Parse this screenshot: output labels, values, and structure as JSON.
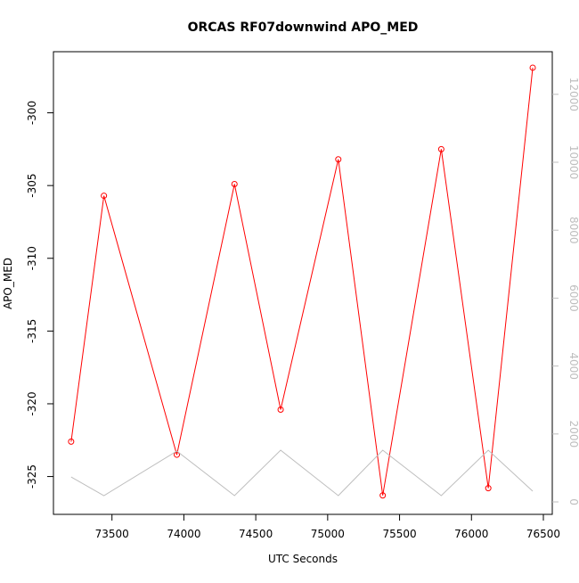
{
  "chart_data": {
    "type": "line",
    "title": "ORCAS RF07downwind APO_MED",
    "x_label": "UTC Seconds",
    "y_label": "APO_MED",
    "x": [
      73216,
      73444,
      73951,
      74352,
      74673,
      75074,
      75383,
      75790,
      76117,
      76426
    ],
    "series": [
      {
        "color": "#ff0000",
        "markers": true,
        "values": [
          -322.6,
          -305.7,
          -323.5,
          -304.9,
          -320.4,
          -303.2,
          -326.3,
          -302.5,
          -325.8,
          -296.9
        ]
      },
      {
        "color": "#bebebe",
        "axis": "y2",
        "markers": false,
        "values": [
          735,
          184,
          1496,
          184,
          1522,
          184,
          1522,
          184,
          1522,
          315
        ]
      }
    ],
    "xlim": [
      73093,
      76562
    ],
    "xticks": [
      73500,
      74000,
      74500,
      75000,
      75500,
      76000,
      76500
    ],
    "ylim": [
      -327.6,
      -295.8
    ],
    "yticks": [
      -325,
      -320,
      -315,
      -310,
      -305,
      -300
    ],
    "y2lim": [
      -367,
      13255
    ],
    "y2ticks": [
      0,
      2000,
      4000,
      6000,
      8000,
      10000,
      12000
    ],
    "y2color": "#bebebe"
  }
}
